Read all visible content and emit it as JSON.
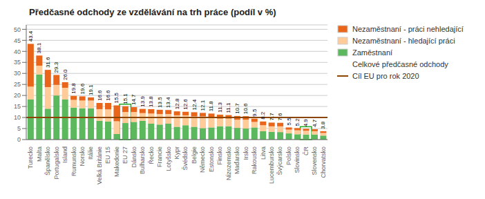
{
  "chart_data": {
    "type": "bar",
    "title": "Předčasné odchody ze vzdělávání na trh práce (podíl v %)",
    "stacked": true,
    "grid": true,
    "categories": [
      "Turecko",
      "Malta",
      "Španělsko",
      "Portugalsko",
      "Island",
      "Rumunsko",
      "Norsko",
      "Itálie",
      "Velká Británie",
      "EU 15",
      "Makedonie",
      "EU 27",
      "Dánsko",
      "Bulharsko",
      "Řecko",
      "Francie",
      "Lotyšsko",
      "Kypr",
      "Švédsko",
      "Belgie",
      "Německo",
      "Estonsko",
      "Finsko",
      "Nizozemsko",
      "Maďarsko",
      "Irsko",
      "Rakousko",
      "Litva",
      "Lucembursko",
      "Švýcarsko",
      "Polsko",
      "Slovinsko",
      "ČR",
      "Slovensko",
      "Chorvatsko"
    ],
    "series": [
      {
        "name": "Zaměstnaní",
        "color": "#5cb85c",
        "values": [
          18.2,
          29.5,
          14.0,
          20.0,
          18.2,
          14.5,
          14.2,
          14.2,
          8.5,
          8.2,
          2.5,
          7.5,
          8.0,
          8.5,
          7.2,
          6.8,
          7.2,
          5.8,
          6.5,
          5.8,
          5.2,
          5.5,
          6.0,
          6.0,
          5.3,
          5.0,
          5.5,
          3.8,
          3.5,
          3.4,
          2.8,
          2.4,
          2.3,
          2.3,
          1.8
        ]
      },
      {
        "name": "Nezaměstnaní - hledající práci",
        "color": "#ffcc99",
        "values": [
          5.8,
          4.0,
          9.8,
          4.8,
          5.3,
          3.5,
          3.5,
          3.5,
          5.3,
          5.5,
          5.8,
          5.0,
          4.5,
          3.5,
          4.6,
          4.8,
          4.4,
          5.2,
          4.5,
          4.7,
          5.3,
          4.5,
          3.5,
          3.5,
          3.7,
          4.0,
          2.5,
          2.7,
          2.5,
          2.6,
          1.7,
          1.8,
          1.7,
          1.5,
          1.2
        ]
      },
      {
        "name": "Nezaměstnaní - práci nehledající",
        "color": "#e8651a",
        "values": [
          19.4,
          4.6,
          7.8,
          4.5,
          2.5,
          1.8,
          1.9,
          1.4,
          2.8,
          2.9,
          7.2,
          2.6,
          2.2,
          1.9,
          2.0,
          1.9,
          1.8,
          1.8,
          1.6,
          1.9,
          1.6,
          1.8,
          1.8,
          1.6,
          1.7,
          1.6,
          1.5,
          1.7,
          1.7,
          1.6,
          1.0,
          1.0,
          0.9,
          0.9,
          0.8
        ]
      }
    ],
    "totals": {
      "name": "Celkové předčasné odchody",
      "values": [
        43.4,
        38.1,
        31.6,
        29.3,
        26.0,
        19.8,
        19.6,
        19.1,
        16.6,
        16.6,
        15.5,
        15.1,
        14.7,
        13.9,
        13.8,
        13.5,
        13.4,
        12.8,
        12.6,
        12.4,
        12.1,
        11.8,
        11.3,
        11.1,
        10.7,
        10.6,
        9.5,
        8.2,
        7.7,
        7.6,
        5.5,
        5.2,
        4.9,
        4.7,
        3.8
      ]
    },
    "target": {
      "name": "Cíl EU pro rok 2020",
      "value": 10.0,
      "color": "#8B4500"
    },
    "highlight": {
      "categories": [
        "EU 27",
        "ČR"
      ],
      "color": "#22aa22"
    },
    "ylim": [
      0,
      52
    ],
    "yticks": [
      0,
      5,
      10,
      15,
      20,
      25,
      30,
      35,
      40,
      45,
      50
    ]
  }
}
